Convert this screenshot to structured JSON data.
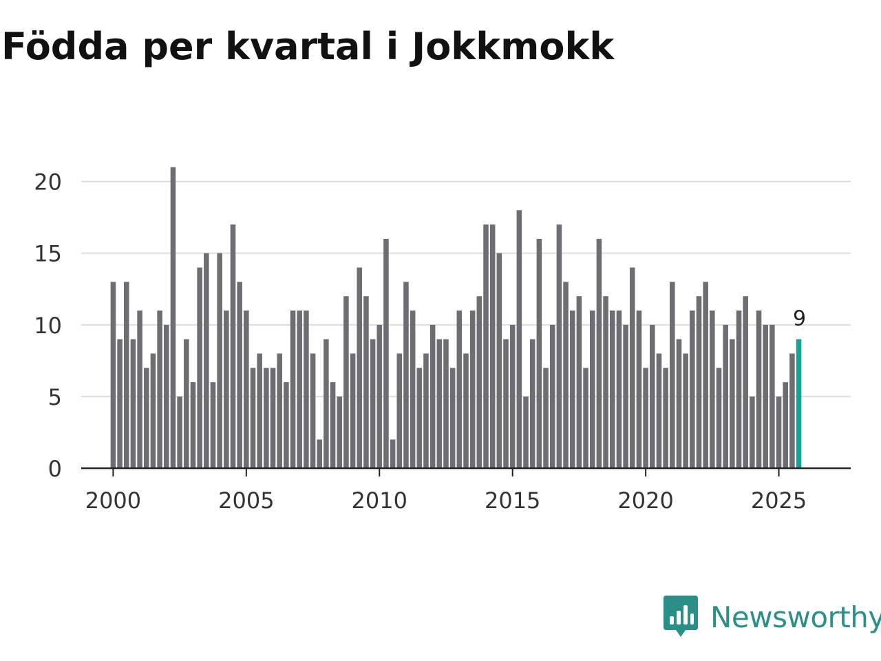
{
  "chart_data": {
    "type": "bar",
    "title": "Födda per kvartal i Jokkmokk",
    "xlabel": "",
    "ylabel": "",
    "start_year": 2000,
    "start_quarter": 1,
    "values": [
      13,
      9,
      13,
      9,
      11,
      7,
      8,
      11,
      10,
      21,
      5,
      9,
      6,
      14,
      15,
      6,
      15,
      11,
      17,
      13,
      11,
      7,
      8,
      7,
      7,
      8,
      6,
      11,
      11,
      11,
      8,
      2,
      9,
      6,
      5,
      12,
      8,
      14,
      12,
      9,
      10,
      16,
      2,
      8,
      13,
      11,
      7,
      8,
      10,
      9,
      9,
      7,
      11,
      8,
      11,
      12,
      17,
      17,
      15,
      9,
      10,
      18,
      5,
      9,
      16,
      7,
      10,
      17,
      13,
      11,
      12,
      7,
      11,
      16,
      12,
      11,
      11,
      10,
      14,
      11,
      7,
      10,
      8,
      7,
      13,
      9,
      8,
      11,
      12,
      13,
      11,
      7,
      10,
      9,
      11,
      12,
      5,
      11,
      10,
      10,
      5,
      6,
      8,
      9
    ],
    "ylim": [
      0,
      22
    ],
    "y_ticks": [
      "0",
      "5",
      "10",
      "15",
      "20"
    ],
    "x_ticks": [
      "2000",
      "2005",
      "2010",
      "2015",
      "2020",
      "2025"
    ],
    "xlim": [
      1998.8,
      2027.7
    ],
    "grid": true,
    "highlight_index": 103,
    "highlight_label": "9",
    "colors": {
      "bar": "#6d6d72",
      "highlight": "#14a396",
      "grid": "#dddddd",
      "axis": "#222222"
    }
  },
  "brand": {
    "name": "Newsworthy",
    "color": "#2a8f86"
  }
}
